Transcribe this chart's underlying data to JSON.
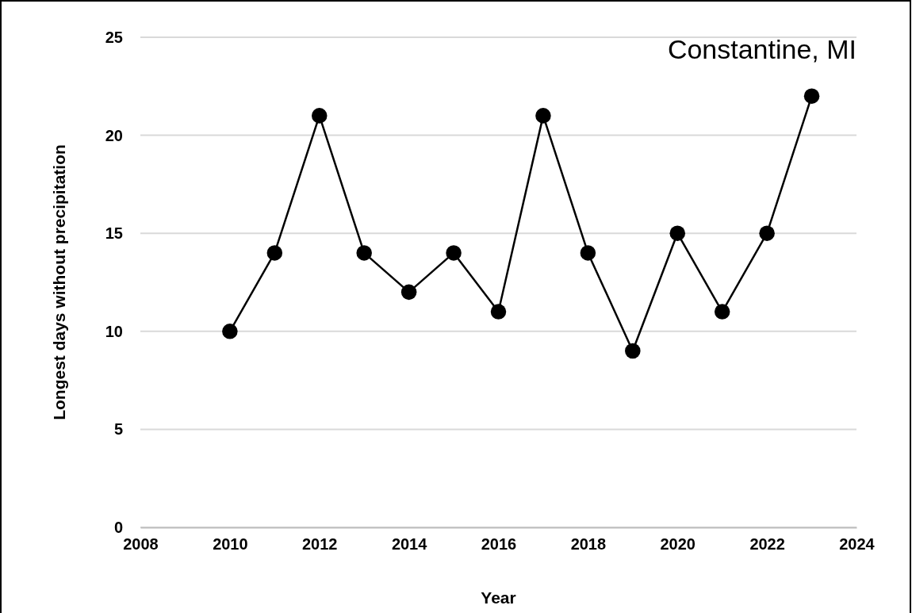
{
  "chart_data": {
    "type": "line",
    "xlabel": "Year",
    "ylabel": "Longest days without precipitation",
    "annotations": [
      "Constantine, MI"
    ],
    "x": [
      2010,
      2011,
      2012,
      2013,
      2014,
      2015,
      2016,
      2017,
      2018,
      2019,
      2020,
      2021,
      2022,
      2023
    ],
    "series": [
      {
        "color": "#000000",
        "values": [
          10,
          14,
          21,
          14,
          12,
          14,
          11,
          21,
          14,
          9,
          15,
          11,
          15,
          22
        ]
      }
    ],
    "xlim": [
      2008,
      2024
    ],
    "xticks": [
      2008,
      2010,
      2012,
      2014,
      2016,
      2018,
      2020,
      2022,
      2024
    ],
    "ylim": [
      0,
      25
    ],
    "yticks": [
      0,
      5,
      10,
      15,
      20,
      25
    ],
    "grid": "y",
    "marker": "circle",
    "line_style": "solid"
  }
}
